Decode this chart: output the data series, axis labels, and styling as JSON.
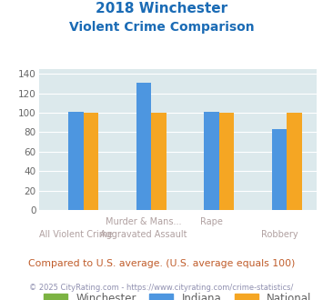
{
  "title_line1": "2018 Winchester",
  "title_line2": "Violent Crime Comparison",
  "top_labels": [
    "",
    "Murder & Mans...",
    "Rape",
    ""
  ],
  "bottom_labels": [
    "All Violent Crime",
    "Aggravated Assault",
    "",
    "Robbery"
  ],
  "series": {
    "Winchester": {
      "values": [
        0,
        0,
        0,
        0
      ],
      "color": "#7cb342"
    },
    "Indiana": {
      "values": [
        101,
        131,
        101,
        83
      ],
      "color": "#4d96e0"
    },
    "National": {
      "values": [
        100,
        100,
        100,
        100
      ],
      "color": "#f5a623"
    }
  },
  "ylim": [
    0,
    145
  ],
  "yticks": [
    0,
    20,
    40,
    60,
    80,
    100,
    120,
    140
  ],
  "bg_color": "#dce9ec",
  "title_color": "#1a6bb5",
  "label_color": "#b0a0a0",
  "footer_text": "Compared to U.S. average. (U.S. average equals 100)",
  "copyright_text": "© 2025 CityRating.com - https://www.cityrating.com/crime-statistics/",
  "footer_color": "#c05c2a",
  "copyright_color": "#9090b0"
}
